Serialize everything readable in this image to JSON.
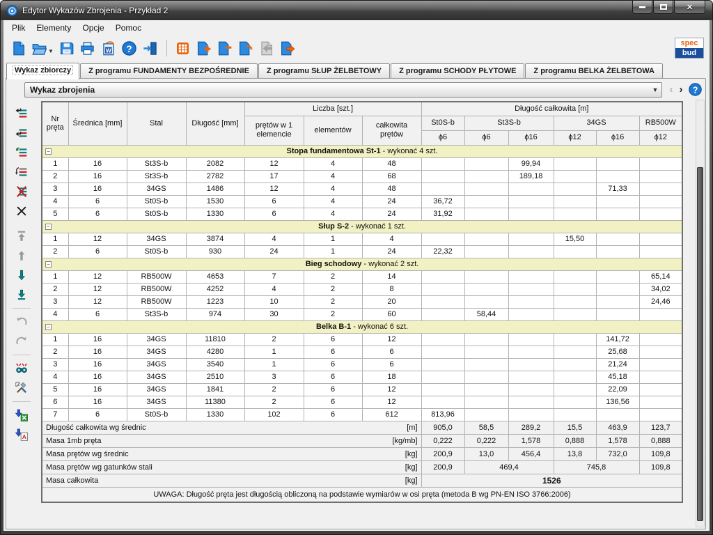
{
  "window": {
    "title": "Edytor Wykazów Zbrojenia - Przykład 2"
  },
  "menu": {
    "items": [
      "Plik",
      "Elementy",
      "Opcje",
      "Pomoc"
    ]
  },
  "toolbar": {
    "buttons": [
      {
        "name": "new-file"
      },
      {
        "name": "open-file",
        "dropdown": true
      },
      {
        "name": "save"
      },
      {
        "name": "print"
      },
      {
        "name": "export-word"
      },
      {
        "name": "help"
      },
      {
        "name": "exit"
      },
      {
        "name": "separator"
      },
      {
        "name": "table-grid"
      },
      {
        "name": "add-element"
      },
      {
        "name": "remove-element"
      },
      {
        "name": "replace-element"
      },
      {
        "name": "back",
        "disabled": true
      },
      {
        "name": "export-element"
      }
    ],
    "logo": {
      "top": "spec",
      "bottom": "bud"
    }
  },
  "tabs": [
    {
      "label": "Wykaz zbiorczy",
      "active": true
    },
    {
      "label": "Z programu FUNDAMENTY BEZPOŚREDNIE",
      "active": false
    },
    {
      "label": "Z programu SŁUP ŻELBETOWY",
      "active": false
    },
    {
      "label": "Z programu SCHODY PŁYTOWE",
      "active": false
    },
    {
      "label": "Z programu BELKA ŻELBETOWA",
      "active": false
    }
  ],
  "selector": {
    "value": "Wykaz zbrojenia",
    "prev_enabled": false,
    "next_enabled": true
  },
  "sidebar": {
    "buttons": [
      {
        "name": "insert-element-above"
      },
      {
        "name": "insert-element-below"
      },
      {
        "name": "add-element"
      },
      {
        "name": "duplicate-element"
      },
      {
        "name": "merge-elements"
      },
      {
        "name": "delete-element"
      },
      {
        "name": "gap"
      },
      {
        "name": "move-first",
        "disabled": true
      },
      {
        "name": "move-up",
        "disabled": true
      },
      {
        "name": "move-down"
      },
      {
        "name": "move-last"
      },
      {
        "name": "separator"
      },
      {
        "name": "undo",
        "disabled": true
      },
      {
        "name": "redo",
        "disabled": true
      },
      {
        "name": "separator"
      },
      {
        "name": "find-elements"
      },
      {
        "name": "settings-tools"
      },
      {
        "name": "separator"
      },
      {
        "name": "export-excel"
      },
      {
        "name": "export-cad"
      }
    ]
  },
  "table": {
    "headers": {
      "nr": "Nr pręta",
      "srednica": "Średnica [mm]",
      "stal": "Stal",
      "dlugosc": "Długość [mm]",
      "liczba": "Liczba [szt.]",
      "pretow1": "prętów w 1 elemencie",
      "elementow": "elementów",
      "calkowita": "całkowita prętów",
      "dlugosc_calkowita": "Długość całkowita [m]"
    },
    "steel_groups": [
      {
        "label": "St0S-b",
        "span": 1
      },
      {
        "label": "St3S-b",
        "span": 2
      },
      {
        "label": "34GS",
        "span": 2
      },
      {
        "label": "RB500W",
        "span": 1
      }
    ],
    "diameters": [
      "ϕ6",
      "ϕ6",
      "ϕ16",
      "ϕ12",
      "ϕ16",
      "ϕ12"
    ],
    "groups": [
      {
        "title": "Stopa fundamentowa St-1",
        "suffix": "- wykonać 4 szt.",
        "rows": [
          [
            "1",
            "16",
            "St3S-b",
            "2082",
            "12",
            "4",
            "48",
            "",
            "",
            "99,94",
            "",
            "",
            ""
          ],
          [
            "2",
            "16",
            "St3S-b",
            "2782",
            "17",
            "4",
            "68",
            "",
            "",
            "189,18",
            "",
            "",
            ""
          ],
          [
            "3",
            "16",
            "34GS",
            "1486",
            "12",
            "4",
            "48",
            "",
            "",
            "",
            "",
            "71,33",
            ""
          ],
          [
            "4",
            "6",
            "St0S-b",
            "1530",
            "6",
            "4",
            "24",
            "36,72",
            "",
            "",
            "",
            "",
            ""
          ],
          [
            "5",
            "6",
            "St0S-b",
            "1330",
            "6",
            "4",
            "24",
            "31,92",
            "",
            "",
            "",
            "",
            ""
          ]
        ]
      },
      {
        "title": "Słup S-2",
        "suffix": "- wykonać 1 szt.",
        "rows": [
          [
            "1",
            "12",
            "34GS",
            "3874",
            "4",
            "1",
            "4",
            "",
            "",
            "",
            "15,50",
            "",
            ""
          ],
          [
            "2",
            "6",
            "St0S-b",
            "930",
            "24",
            "1",
            "24",
            "22,32",
            "",
            "",
            "",
            "",
            ""
          ]
        ]
      },
      {
        "title": "Bieg schodowy",
        "suffix": "- wykonać 2 szt.",
        "rows": [
          [
            "1",
            "12",
            "RB500W",
            "4653",
            "7",
            "2",
            "14",
            "",
            "",
            "",
            "",
            "",
            "65,14"
          ],
          [
            "2",
            "12",
            "RB500W",
            "4252",
            "4",
            "2",
            "8",
            "",
            "",
            "",
            "",
            "",
            "34,02"
          ],
          [
            "3",
            "12",
            "RB500W",
            "1223",
            "10",
            "2",
            "20",
            "",
            "",
            "",
            "",
            "",
            "24,46"
          ],
          [
            "4",
            "6",
            "St3S-b",
            "974",
            "30",
            "2",
            "60",
            "",
            "58,44",
            "",
            "",
            "",
            ""
          ]
        ]
      },
      {
        "title": "Belka B-1",
        "suffix": "- wykonać 6 szt.",
        "rows": [
          [
            "1",
            "16",
            "34GS",
            "11810",
            "2",
            "6",
            "12",
            "",
            "",
            "",
            "",
            "141,72",
            ""
          ],
          [
            "2",
            "16",
            "34GS",
            "4280",
            "1",
            "6",
            "6",
            "",
            "",
            "",
            "",
            "25,68",
            ""
          ],
          [
            "3",
            "16",
            "34GS",
            "3540",
            "1",
            "6",
            "6",
            "",
            "",
            "",
            "",
            "21,24",
            ""
          ],
          [
            "4",
            "16",
            "34GS",
            "2510",
            "3",
            "6",
            "18",
            "",
            "",
            "",
            "",
            "45,18",
            ""
          ],
          [
            "5",
            "16",
            "34GS",
            "1841",
            "2",
            "6",
            "12",
            "",
            "",
            "",
            "",
            "22,09",
            ""
          ],
          [
            "6",
            "16",
            "34GS",
            "11380",
            "2",
            "6",
            "12",
            "",
            "",
            "",
            "",
            "136,56",
            ""
          ],
          [
            "7",
            "6",
            "St0S-b",
            "1330",
            "102",
            "6",
            "612",
            "813,96",
            "",
            "",
            "",
            "",
            ""
          ]
        ]
      }
    ],
    "summary": [
      {
        "label": "Długość całkowita wg średnic",
        "unit": "[m]",
        "cells": [
          {
            "v": "905,0",
            "span": 1
          },
          {
            "v": "58,5",
            "span": 1
          },
          {
            "v": "289,2",
            "span": 1
          },
          {
            "v": "15,5",
            "span": 1
          },
          {
            "v": "463,9",
            "span": 1
          },
          {
            "v": "123,7",
            "span": 1
          }
        ]
      },
      {
        "label": "Masa 1mb pręta",
        "unit": "[kg/mb]",
        "cells": [
          {
            "v": "0,222",
            "span": 1
          },
          {
            "v": "0,222",
            "span": 1
          },
          {
            "v": "1,578",
            "span": 1
          },
          {
            "v": "0,888",
            "span": 1
          },
          {
            "v": "1,578",
            "span": 1
          },
          {
            "v": "0,888",
            "span": 1
          }
        ]
      },
      {
        "label": "Masa prętów wg średnic",
        "unit": "[kg]",
        "cells": [
          {
            "v": "200,9",
            "span": 1
          },
          {
            "v": "13,0",
            "span": 1
          },
          {
            "v": "456,4",
            "span": 1
          },
          {
            "v": "13,8",
            "span": 1
          },
          {
            "v": "732,0",
            "span": 1
          },
          {
            "v": "109,8",
            "span": 1
          }
        ]
      },
      {
        "label": "Masa prętów wg gatunków stali",
        "unit": "[kg]",
        "cells": [
          {
            "v": "200,9",
            "span": 1
          },
          {
            "v": "469,4",
            "span": 2
          },
          {
            "v": "745,8",
            "span": 2
          },
          {
            "v": "109,8",
            "span": 1
          }
        ]
      },
      {
        "label": "Masa całkowita",
        "unit": "[kg]",
        "cells": [
          {
            "v": "1526",
            "span": 6,
            "bold": true
          }
        ]
      }
    ],
    "note": "UWAGA: Długość pręta jest długością obliczoną na podstawie wymiarów w osi pręta (metoda B wg PN-EN ISO 3766:2006)"
  },
  "colors": {
    "titlebar": "#3c3c3c",
    "close_button": "#c2502f",
    "group_row": "#f1f1c3",
    "icon_blue": "#2e8ae0",
    "icon_orange": "#e8650f",
    "sidebar_teal": "#0d8080",
    "sidebar_red": "#cc1f1f",
    "logo_blue": "#1a4f9c",
    "logo_orange": "#e8650f",
    "help_blue": "#1e7ad4"
  }
}
